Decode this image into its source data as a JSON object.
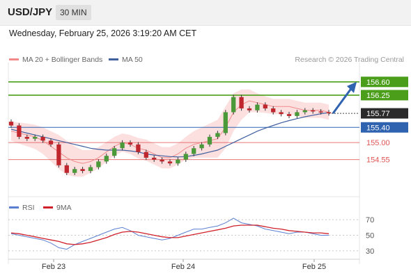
{
  "header": {
    "symbol": "USD/JPY",
    "timeframe": "30 MIN"
  },
  "datetime": "Wednesday, February 25, 2026 3:19:20 AM CET",
  "legend": {
    "ma20": "MA 20 + Bollinger Bands",
    "ma50": "MA 50",
    "credit": "Research © 2026 Trading Central"
  },
  "colors": {
    "up": "#4a9a3a",
    "down": "#c0262d",
    "target": "#4a9e1a",
    "pivot": "#2f63b0",
    "support": "#e05555",
    "ma20": "#f08a8a",
    "ma50": "#3f5f9f",
    "band": "#fbd6d6",
    "rsi": "#5b7fd0",
    "rsi_ma": "#d0202a"
  },
  "chart_data": [
    {
      "type": "line",
      "title": "USD/JPY 30 MIN",
      "x_ticks": [
        "Feb 23",
        "Feb 24",
        "Feb 25"
      ],
      "ylim": [
        153.7,
        157.0
      ],
      "levels": [
        {
          "label": "156.60",
          "value": 156.6,
          "kind": "target"
        },
        {
          "label": "156.25",
          "value": 156.25,
          "kind": "target"
        },
        {
          "label": "155.77",
          "value": 155.77,
          "kind": "last"
        },
        {
          "label": "155.40",
          "value": 155.4,
          "kind": "pivot"
        },
        {
          "label": "155.00",
          "value": 155.0,
          "kind": "support"
        },
        {
          "label": "154.55",
          "value": 154.55,
          "kind": "support"
        }
      ],
      "series": [
        {
          "name": "MA 20 + Bollinger Bands",
          "values": [
            155.3,
            155.25,
            155.2,
            155.15,
            155.05,
            154.9,
            154.75,
            154.6,
            154.5,
            154.45,
            154.5,
            154.6,
            154.75,
            154.9,
            155.0,
            154.95,
            154.85,
            154.8,
            154.7,
            154.6,
            154.6,
            154.7,
            154.85,
            154.95,
            155.0,
            155.05,
            155.1,
            155.4,
            155.8,
            156.0,
            156.1,
            156.05,
            156.0,
            155.95,
            155.95,
            155.95,
            155.9,
            155.85,
            155.85,
            155.85,
            155.8
          ]
        },
        {
          "name": "MA 50",
          "values": [
            155.35,
            155.3,
            155.25,
            155.2,
            155.15,
            155.1,
            155.05,
            155.0,
            154.95,
            154.9,
            154.85,
            154.82,
            154.8,
            154.8,
            154.8,
            154.78,
            154.75,
            154.7,
            154.67,
            154.65,
            154.63,
            154.62,
            154.63,
            154.66,
            154.7,
            154.75,
            154.8,
            154.9,
            155.0,
            155.1,
            155.2,
            155.3,
            155.38,
            155.45,
            155.52,
            155.58,
            155.63,
            155.68,
            155.72,
            155.76,
            155.79
          ]
        }
      ],
      "candles_close": [
        155.45,
        155.15,
        155.1,
        155.15,
        155.05,
        154.95,
        154.4,
        154.2,
        154.3,
        154.25,
        154.35,
        154.5,
        154.65,
        154.85,
        155.0,
        154.95,
        154.75,
        154.6,
        154.55,
        154.5,
        154.45,
        154.55,
        154.7,
        154.85,
        154.95,
        155.15,
        155.25,
        155.8,
        156.2,
        155.9,
        155.85,
        156.0,
        155.9,
        155.8,
        155.75,
        155.7,
        155.8,
        155.85,
        155.82,
        155.8,
        155.77
      ],
      "forecast": {
        "from": 155.77,
        "to": 156.6
      }
    },
    {
      "type": "line",
      "title": "RSI",
      "ylim": [
        20,
        80
      ],
      "y_ticks": [
        "70",
        "50",
        "30"
      ],
      "series": [
        {
          "name": "RSI",
          "values": [
            52,
            50,
            48,
            46,
            44,
            40,
            34,
            32,
            38,
            42,
            46,
            50,
            54,
            58,
            60,
            56,
            50,
            48,
            46,
            44,
            46,
            50,
            54,
            58,
            58,
            60,
            62,
            66,
            72,
            66,
            64,
            62,
            58,
            56,
            54,
            52,
            54,
            54,
            52,
            50,
            50
          ]
        },
        {
          "name": "9MA",
          "values": [
            53,
            52,
            50,
            48,
            46,
            44,
            42,
            39,
            38,
            39,
            41,
            44,
            47,
            51,
            54,
            55,
            54,
            52,
            50,
            48,
            47,
            47,
            49,
            51,
            53,
            55,
            57,
            59,
            62,
            63,
            63,
            63,
            61,
            59,
            58,
            56,
            55,
            54,
            53,
            53,
            52
          ]
        }
      ]
    }
  ]
}
